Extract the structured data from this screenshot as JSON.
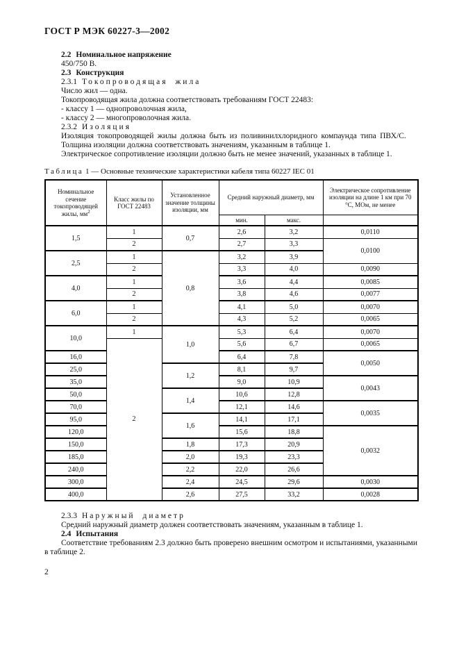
{
  "page": {
    "header": "ГОСТ Р МЭК 60227-3—2002",
    "number": "2"
  },
  "text": {
    "s22": {
      "num": "2.2",
      "title": "Номинальное напряжение"
    },
    "voltage": "450/750 В.",
    "s23": {
      "num": "2.3",
      "title": "Конструкция"
    },
    "s231": {
      "num": "2.3.1",
      "title": "Токопроводящая жила"
    },
    "cores_line": "Число жил — одна.",
    "conductor_req": "Токопроводящая жила должна соответствовать требованиям ГОСТ 22483:",
    "class1_item": "- классу 1 — однопроволочная жила,",
    "class2_item": "- классу 2 — многопроволочная жила.",
    "s232": {
      "num": "2.3.2",
      "title": "Изоляция"
    },
    "insulation_para": "Изоляция токопроводящей жилы должна быть из поливинилхлоридного компаунда типа ПВХ/С.",
    "thickness_para": "Толщина изоляции должна соответствовать значениям, указанным в таблице 1.",
    "resistance_para": "Электрическое сопротивление изоляции должно быть не менее значений, указанных в таблице 1.",
    "s233": {
      "num": "2.3.3",
      "title": "Наружный диаметр"
    },
    "diameter_para": "Средний наружный диаметр должен соответствовать значениям, указанным в таблице 1.",
    "s24": {
      "num": "2.4",
      "title": "Испытания"
    },
    "testing_para": "Соответствие требованиям 2.3 должно быть проверено внешним осмотром и испытаниями, указанными в таблице 2."
  },
  "table": {
    "caption": {
      "word": "Таблица",
      "num": "1",
      "dash": "—",
      "text": "Основные технические характеристики кабеля типа 60227 IEC 01"
    },
    "header": {
      "section": "Номинальное сечение токопроводящей жилы, мм",
      "section_sup": "2",
      "class": "Класс жилы по ГОСТ 22483",
      "thickness": "Установленное значение толщины изоляции, мм",
      "diameter": "Средний наружный диаметр, мм",
      "min": "мин.",
      "max": "макс.",
      "resistance": "Электрическое сопротивление изоляции на длине 1 км при 70 °С, МОм, не менее"
    },
    "body": [
      [
        {
          "c": "section",
          "v": "1,5",
          "rs": 2
        },
        {
          "c": "class",
          "v": "1"
        },
        {
          "c": "thickness",
          "v": "0,7",
          "rs": 2
        },
        {
          "c": "min",
          "v": "2,6"
        },
        {
          "c": "max",
          "v": "3,2"
        },
        {
          "c": "res",
          "v": "0,0110"
        }
      ],
      [
        {
          "c": "class",
          "v": "2"
        },
        {
          "c": "min",
          "v": "2,7"
        },
        {
          "c": "max",
          "v": "3,3"
        },
        {
          "c": "res",
          "v": "0,0100",
          "rs": 2
        }
      ],
      [
        {
          "c": "section",
          "v": "2,5",
          "rs": 2
        },
        {
          "c": "class",
          "v": "1"
        },
        {
          "c": "thickness",
          "v": "0,8",
          "rs": 6
        },
        {
          "c": "min",
          "v": "3,2"
        },
        {
          "c": "max",
          "v": "3,9"
        }
      ],
      [
        {
          "c": "class",
          "v": "2"
        },
        {
          "c": "min",
          "v": "3,3"
        },
        {
          "c": "max",
          "v": "4,0"
        },
        {
          "c": "res",
          "v": "0,0090"
        }
      ],
      [
        {
          "c": "section",
          "v": "4,0",
          "rs": 2
        },
        {
          "c": "class",
          "v": "1"
        },
        {
          "c": "min",
          "v": "3,6"
        },
        {
          "c": "max",
          "v": "4,4"
        },
        {
          "c": "res",
          "v": "0,0085"
        }
      ],
      [
        {
          "c": "class",
          "v": "2"
        },
        {
          "c": "min",
          "v": "3,8"
        },
        {
          "c": "max",
          "v": "4,6"
        },
        {
          "c": "res",
          "v": "0,0077"
        }
      ],
      [
        {
          "c": "section",
          "v": "6,0",
          "rs": 2
        },
        {
          "c": "class",
          "v": "1"
        },
        {
          "c": "min",
          "v": "4,1"
        },
        {
          "c": "max",
          "v": "5,0"
        },
        {
          "c": "res",
          "v": "0,0070"
        }
      ],
      [
        {
          "c": "class",
          "v": "2"
        },
        {
          "c": "min",
          "v": "4,3"
        },
        {
          "c": "max",
          "v": "5,2"
        },
        {
          "c": "res",
          "v": "0,0065"
        }
      ],
      [
        {
          "c": "section",
          "v": "10,0",
          "rs": 2
        },
        {
          "c": "class",
          "v": "1"
        },
        {
          "c": "thickness",
          "v": "1,0",
          "rs": 3
        },
        {
          "c": "min",
          "v": "5,3"
        },
        {
          "c": "max",
          "v": "6,4"
        },
        {
          "c": "res",
          "v": "0,0070"
        }
      ],
      [
        {
          "c": "class",
          "v": "2",
          "rs": 13
        },
        {
          "c": "min",
          "v": "5,6"
        },
        {
          "c": "max",
          "v": "6,7"
        },
        {
          "c": "res",
          "v": "0,0065"
        }
      ],
      [
        {
          "c": "section",
          "v": "16,0"
        },
        {
          "c": "min",
          "v": "6,4"
        },
        {
          "c": "max",
          "v": "7,8"
        },
        {
          "c": "res",
          "v": "0,0050",
          "rs": 2
        }
      ],
      [
        {
          "c": "section",
          "v": "25,0"
        },
        {
          "c": "thickness",
          "v": "1,2",
          "rs": 2
        },
        {
          "c": "min",
          "v": "8,1"
        },
        {
          "c": "max",
          "v": "9,7"
        }
      ],
      [
        {
          "c": "section",
          "v": "35,0"
        },
        {
          "c": "min",
          "v": "9,0"
        },
        {
          "c": "max",
          "v": "10,9"
        },
        {
          "c": "res",
          "v": "0,0043",
          "rs": 2
        }
      ],
      [
        {
          "c": "section",
          "v": "50,0"
        },
        {
          "c": "thickness",
          "v": "1,4",
          "rs": 2
        },
        {
          "c": "min",
          "v": "10,6"
        },
        {
          "c": "max",
          "v": "12,8"
        }
      ],
      [
        {
          "c": "section",
          "v": "70,0"
        },
        {
          "c": "min",
          "v": "12,1"
        },
        {
          "c": "max",
          "v": "14,6"
        },
        {
          "c": "res",
          "v": "0,0035",
          "rs": 2
        }
      ],
      [
        {
          "c": "section",
          "v": "95,0"
        },
        {
          "c": "thickness",
          "v": "1,6",
          "rs": 2
        },
        {
          "c": "min",
          "v": "14,1"
        },
        {
          "c": "max",
          "v": "17,1"
        }
      ],
      [
        {
          "c": "section",
          "v": "120,0"
        },
        {
          "c": "min",
          "v": "15,6"
        },
        {
          "c": "max",
          "v": "18,8"
        },
        {
          "c": "res",
          "v": "0,0032",
          "rs": 4
        }
      ],
      [
        {
          "c": "section",
          "v": "150,0"
        },
        {
          "c": "thickness",
          "v": "1,8"
        },
        {
          "c": "min",
          "v": "17,3"
        },
        {
          "c": "max",
          "v": "20,9"
        }
      ],
      [
        {
          "c": "section",
          "v": "185,0"
        },
        {
          "c": "thickness",
          "v": "2,0"
        },
        {
          "c": "min",
          "v": "19,3"
        },
        {
          "c": "max",
          "v": "23,3"
        }
      ],
      [
        {
          "c": "section",
          "v": "240,0"
        },
        {
          "c": "thickness",
          "v": "2,2"
        },
        {
          "c": "min",
          "v": "22,0"
        },
        {
          "c": "max",
          "v": "26,6"
        }
      ],
      [
        {
          "c": "section",
          "v": "300,0"
        },
        {
          "c": "thickness",
          "v": "2,4"
        },
        {
          "c": "min",
          "v": "24,5"
        },
        {
          "c": "max",
          "v": "29,6"
        },
        {
          "c": "res",
          "v": "0,0030"
        }
      ],
      [
        {
          "c": "section",
          "v": "400,0"
        },
        {
          "c": "thickness",
          "v": "2,6"
        },
        {
          "c": "min",
          "v": "27,5"
        },
        {
          "c": "max",
          "v": "33,2"
        },
        {
          "c": "res",
          "v": "0,0028"
        }
      ]
    ]
  }
}
